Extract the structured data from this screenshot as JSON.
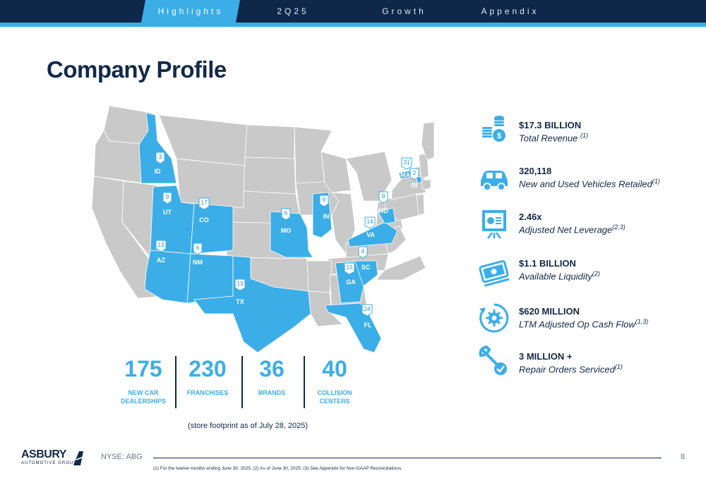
{
  "nav": {
    "tabs": [
      {
        "label": "Highlights",
        "active": true
      },
      {
        "label": "2Q25",
        "active": false
      },
      {
        "label": "Growth",
        "active": false
      },
      {
        "label": "Appendix",
        "active": false
      }
    ]
  },
  "page_title": "Company Profile",
  "map": {
    "states": [
      {
        "abbr": "ID",
        "count": "3"
      },
      {
        "abbr": "UT",
        "count": "9"
      },
      {
        "abbr": "CO",
        "count": "17"
      },
      {
        "abbr": "AZ",
        "count": "13"
      },
      {
        "abbr": "NM",
        "count": "6"
      },
      {
        "abbr": "TX",
        "count": "13"
      },
      {
        "abbr": "MO",
        "count": "6"
      },
      {
        "abbr": "IN",
        "count": "9"
      },
      {
        "abbr": "VA",
        "count": "14"
      },
      {
        "abbr": "MD",
        "count": "9"
      },
      {
        "abbr": "MA",
        "count": "31"
      },
      {
        "abbr": "RI",
        "count": "2"
      },
      {
        "abbr": "SC",
        "count": "4"
      },
      {
        "abbr": "GA",
        "count": "15"
      },
      {
        "abbr": "FL",
        "count": "24"
      }
    ],
    "colors": {
      "served": "#3baee8",
      "other": "#c9c9c9",
      "border": "#ffffff"
    }
  },
  "stats": [
    {
      "value": "175",
      "label_line1": "NEW CAR",
      "label_line2": "DEALERSHIPS"
    },
    {
      "value": "230",
      "label_line1": "FRANCHISES",
      "label_line2": ""
    },
    {
      "value": "36",
      "label_line1": "BRANDS",
      "label_line2": ""
    },
    {
      "value": "40",
      "label_line1": "COLLISION",
      "label_line2": "CENTERS"
    }
  ],
  "store_footnote": "(store footprint as of July 28, 2025)",
  "kpis": [
    {
      "icon": "coins-icon",
      "value": "$17.3 BILLION",
      "label": "Total Revenue ",
      "note": "(1)"
    },
    {
      "icon": "car-icon",
      "value": "320,118",
      "label": "New and Used Vehicles Retailed",
      "note": "(1)"
    },
    {
      "icon": "presentation-chart-icon",
      "value": "2.46x",
      "label": "Adjusted Net Leverage",
      "note": "(2,3)"
    },
    {
      "icon": "cash-icon",
      "value": "$1.1 BILLION",
      "label": "Available Liquidity",
      "note": "(2)"
    },
    {
      "icon": "gear-cycle-icon",
      "value": "$620 MILLION",
      "label": "LTM Adjusted Op Cash Flow",
      "note": "(1,3)"
    },
    {
      "icon": "wrench-check-icon",
      "value": "3 MILLION +",
      "label": "Repair Orders Serviced",
      "note": "(1)"
    }
  ],
  "footer": {
    "logo_main": "ASBURY",
    "logo_sub": "AUTOMOTIVE GROUP",
    "ticker": "NYSE: ABG",
    "page_number": "8",
    "footnotes": "(1) For the twelve months ending June 30, 2025. (2) As of June 30, 2025. (3) See Appendix for Non-GAAP Reconciliations."
  },
  "colors": {
    "navy": "#12294a",
    "accent": "#3baee8"
  }
}
